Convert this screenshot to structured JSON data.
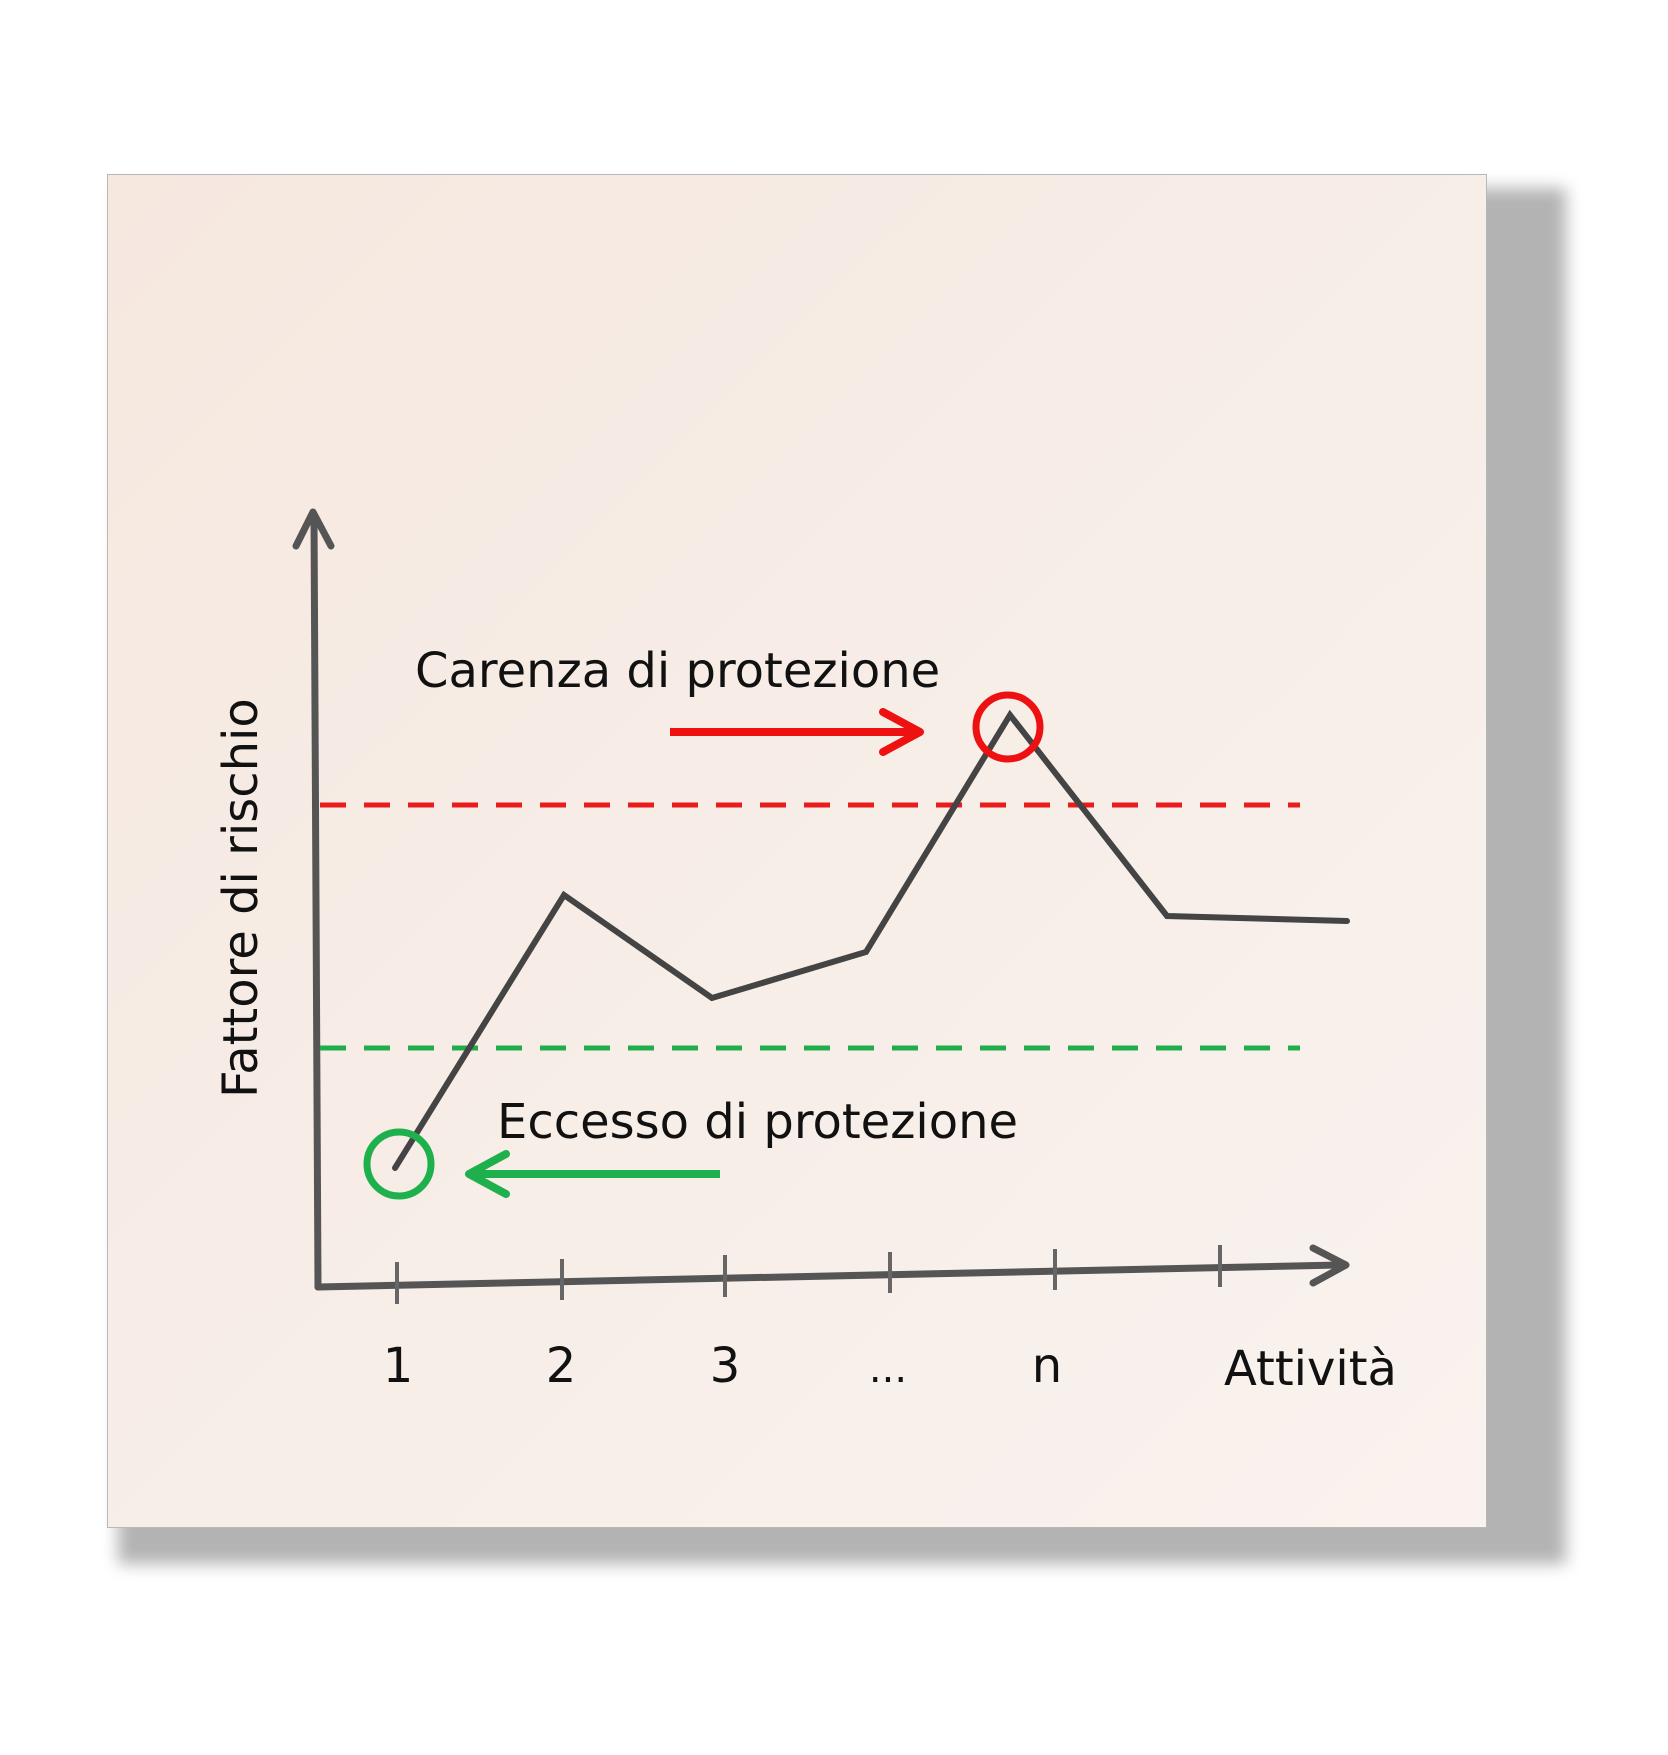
{
  "y_axis_label": "Fattore di rischio",
  "x_axis_label": "Attività",
  "ticks": [
    "1",
    "2",
    "3",
    "...",
    "n"
  ],
  "annotations": {
    "upper": "Carenza di protezione",
    "lower": "Eccesso di protezione"
  },
  "colors": {
    "line": "#555555",
    "upper_threshold": "#e81c1c",
    "lower_threshold": "#1fae4b",
    "upper_marker": "#ee1111",
    "lower_marker": "#1db04d",
    "text": "#111111"
  }
}
